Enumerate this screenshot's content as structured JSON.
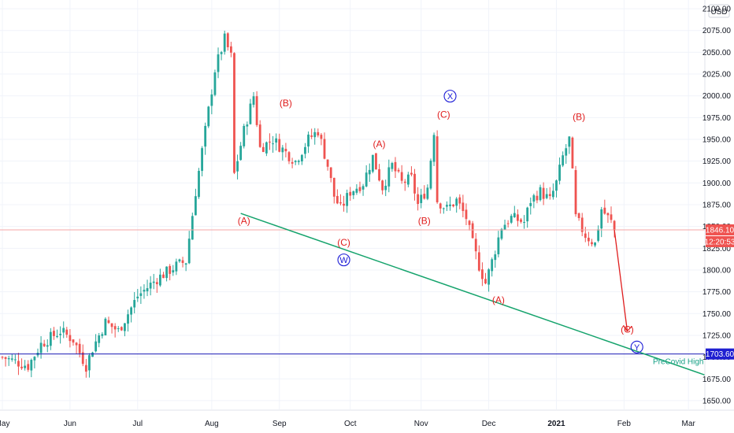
{
  "currency_label": "USD",
  "colors": {
    "up": "#26a69a",
    "down": "#ef5350",
    "trendline": "#15a36c",
    "support": "#1a1ab5",
    "price_line": "#f4a7a7",
    "wave_red": "#e01e1e",
    "wave_blue": "#1a1ad6"
  },
  "price_tag": {
    "price": "1846.10",
    "countdown": "12:20:53"
  },
  "level_tag": {
    "price": "1703.60"
  },
  "annotation_note": "PreCovid High",
  "chart_data": {
    "type": "candlestick",
    "symbol_unit": "USD",
    "y_ticks": [
      "2100.00",
      "2075.00",
      "2050.00",
      "2025.00",
      "2000.00",
      "1975.00",
      "1950.00",
      "1925.00",
      "1900.00",
      "1875.00",
      "1850.00",
      "1825.00",
      "1800.00",
      "1775.00",
      "1750.00",
      "1725.00",
      "1700.00",
      "1675.00",
      "1650.00"
    ],
    "y_range": [
      1640,
      2110
    ],
    "x_ticks": [
      {
        "label": "May",
        "index": 0,
        "bold": false
      },
      {
        "label": "Jun",
        "index": 21,
        "bold": false
      },
      {
        "label": "Jul",
        "index": 42,
        "bold": false
      },
      {
        "label": "Aug",
        "index": 65,
        "bold": false
      },
      {
        "label": "Sep",
        "index": 86,
        "bold": false
      },
      {
        "label": "Oct",
        "index": 108,
        "bold": false
      },
      {
        "label": "Nov",
        "index": 130,
        "bold": false
      },
      {
        "label": "Dec",
        "index": 151,
        "bold": false
      },
      {
        "label": "2021",
        "index": 172,
        "bold": true
      },
      {
        "label": "Feb",
        "index": 193,
        "bold": false
      },
      {
        "label": "Mar",
        "index": 213,
        "bold": false
      }
    ],
    "total_slots": 220,
    "close_path": [
      [
        0,
        1700
      ],
      [
        8,
        1690
      ],
      [
        12,
        1715
      ],
      [
        18,
        1730
      ],
      [
        22,
        1720
      ],
      [
        26,
        1690
      ],
      [
        28,
        1710
      ],
      [
        32,
        1740
      ],
      [
        36,
        1730
      ],
      [
        42,
        1770
      ],
      [
        48,
        1790
      ],
      [
        54,
        1805
      ],
      [
        57,
        1810
      ],
      [
        60,
        1890
      ],
      [
        63,
        1960
      ],
      [
        66,
        2030
      ],
      [
        69,
        2065
      ],
      [
        71,
        2045
      ],
      [
        72,
        1910
      ],
      [
        75,
        1960
      ],
      [
        78,
        2000
      ],
      [
        80,
        1940
      ],
      [
        84,
        1950
      ],
      [
        88,
        1935
      ],
      [
        91,
        1925
      ],
      [
        95,
        1950
      ],
      [
        98,
        1960
      ],
      [
        101,
        1920
      ],
      [
        103,
        1885
      ],
      [
        105,
        1870
      ],
      [
        108,
        1890
      ],
      [
        112,
        1900
      ],
      [
        115,
        1930
      ],
      [
        118,
        1895
      ],
      [
        121,
        1920
      ],
      [
        124,
        1900
      ],
      [
        127,
        1905
      ],
      [
        129,
        1875
      ],
      [
        132,
        1895
      ],
      [
        134,
        1960
      ],
      [
        135,
        1880
      ],
      [
        138,
        1870
      ],
      [
        141,
        1880
      ],
      [
        144,
        1860
      ],
      [
        146,
        1830
      ],
      [
        148,
        1805
      ],
      [
        150,
        1785
      ],
      [
        152,
        1810
      ],
      [
        155,
        1850
      ],
      [
        158,
        1860
      ],
      [
        162,
        1855
      ],
      [
        164,
        1880
      ],
      [
        167,
        1890
      ],
      [
        170,
        1880
      ],
      [
        172,
        1900
      ],
      [
        174,
        1930
      ],
      [
        176,
        1950
      ],
      [
        177,
        1910
      ],
      [
        178,
        1860
      ],
      [
        181,
        1840
      ],
      [
        184,
        1830
      ],
      [
        186,
        1870
      ],
      [
        189,
        1855
      ],
      [
        190,
        1846.1
      ]
    ],
    "support_level": 1703.6,
    "trendline": {
      "from": [
        74,
        1865
      ],
      "to": [
        220,
        1677
      ]
    },
    "projection": {
      "from": [
        190,
        1846.1
      ],
      "to": [
        194,
        1730
      ]
    },
    "wave_labels": [
      {
        "text": "(B)",
        "index": 88,
        "price": 1988,
        "style": "red"
      },
      {
        "text": "(A)",
        "index": 75,
        "price": 1853,
        "style": "red"
      },
      {
        "text": "(C)",
        "index": 106,
        "price": 1828,
        "style": "red"
      },
      {
        "text": "W",
        "index": 106,
        "price": 1808,
        "style": "blue"
      },
      {
        "text": "(A)",
        "index": 117,
        "price": 1941,
        "style": "red"
      },
      {
        "text": "(B)",
        "index": 131,
        "price": 1853,
        "style": "red"
      },
      {
        "text": "(C)",
        "index": 137,
        "price": 1975,
        "style": "red"
      },
      {
        "text": "X",
        "index": 139,
        "price": 1996,
        "style": "blue"
      },
      {
        "text": "(A)",
        "index": 154,
        "price": 1762,
        "style": "red"
      },
      {
        "text": "(B)",
        "index": 179,
        "price": 1972,
        "style": "red"
      },
      {
        "text": "(C)",
        "index": 194,
        "price": 1728,
        "style": "red"
      },
      {
        "text": "Y",
        "index": 197,
        "price": 1708,
        "style": "blue"
      }
    ]
  }
}
